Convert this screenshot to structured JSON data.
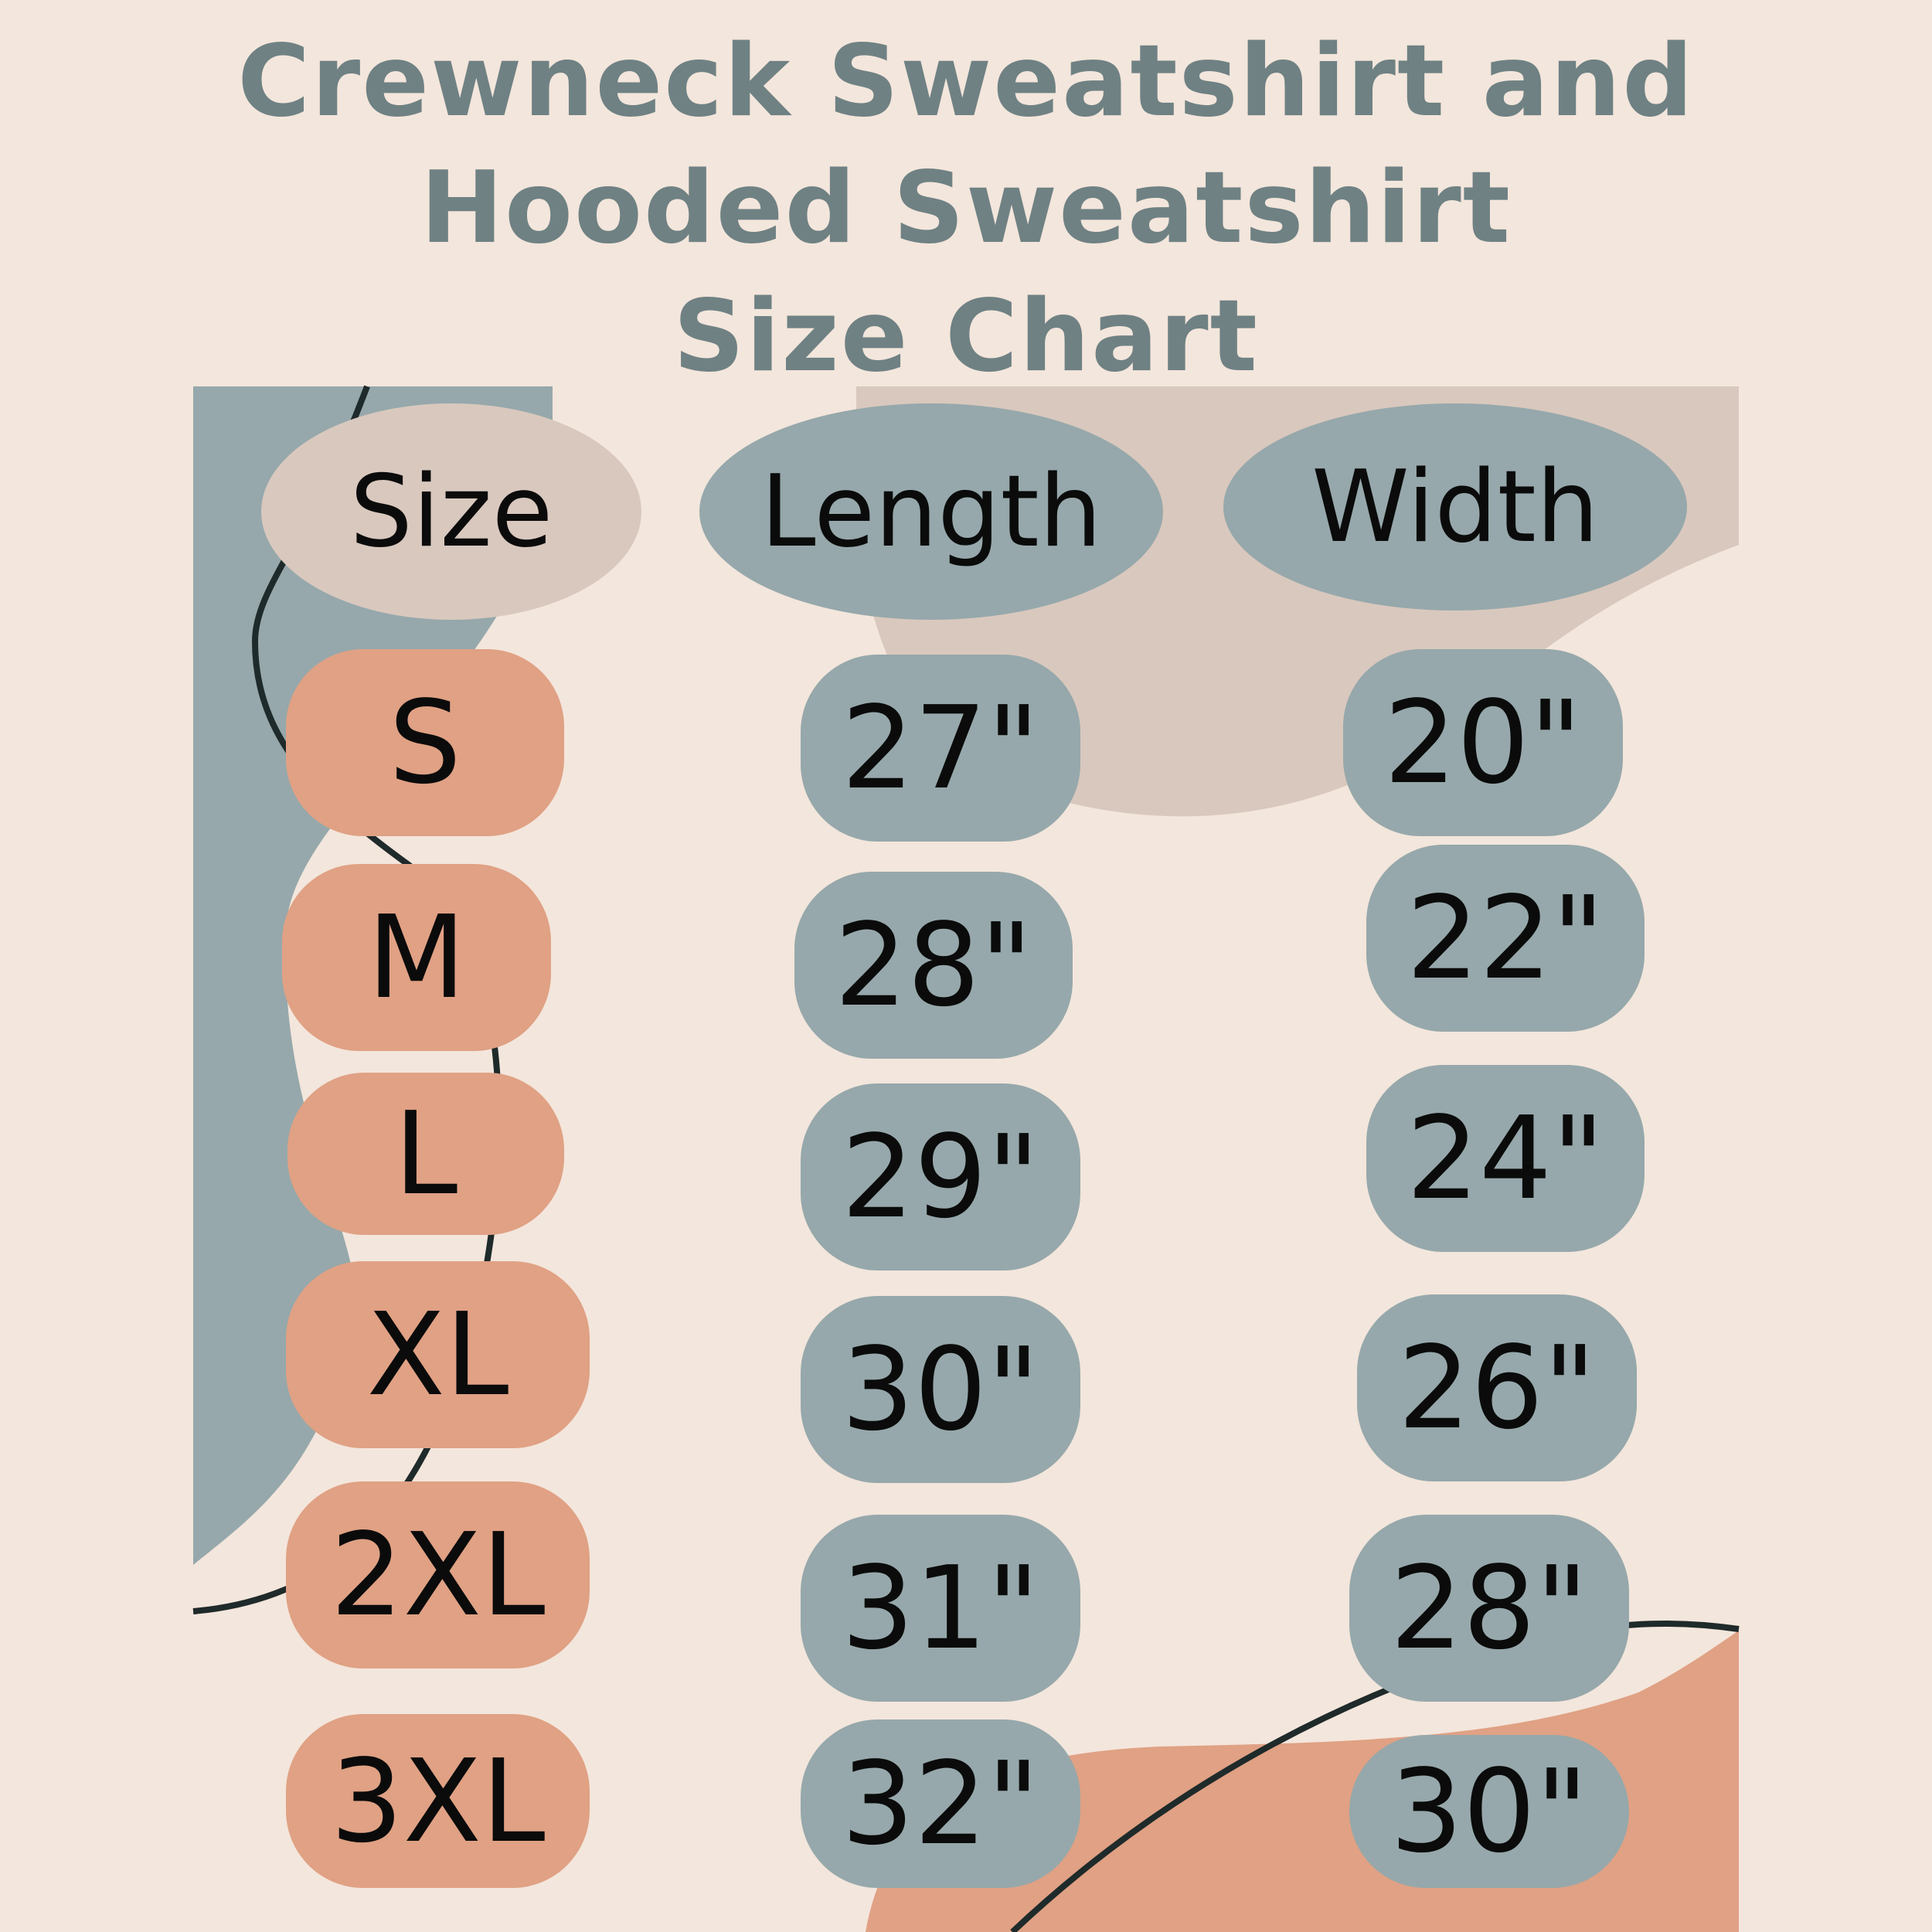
{
  "title": {
    "line1": "Crewneck Sweatshirt and",
    "line2": "Hooded Sweatshirt",
    "line3": "Size Chart"
  },
  "headers": {
    "size": "Size",
    "length": "Length",
    "width": "Width"
  },
  "rows": [
    {
      "size": "S",
      "length": "27\"",
      "width": "20\""
    },
    {
      "size": "M",
      "length": "28\"",
      "width": "22\""
    },
    {
      "size": "L",
      "length": "29\"",
      "width": "24\""
    },
    {
      "size": "XL",
      "length": "30\"",
      "width": "26\""
    },
    {
      "size": "2XL",
      "length": "31\"",
      "width": "28\""
    },
    {
      "size": "3XL",
      "length": "32\"",
      "width": "30\""
    }
  ],
  "colors": {
    "background": "#f3e6dc",
    "title": "#6f8183",
    "blue_gray": "#96a8ab",
    "terracotta": "#e0a184",
    "beige": "#d9c8be",
    "line": "#1f2a2a"
  }
}
